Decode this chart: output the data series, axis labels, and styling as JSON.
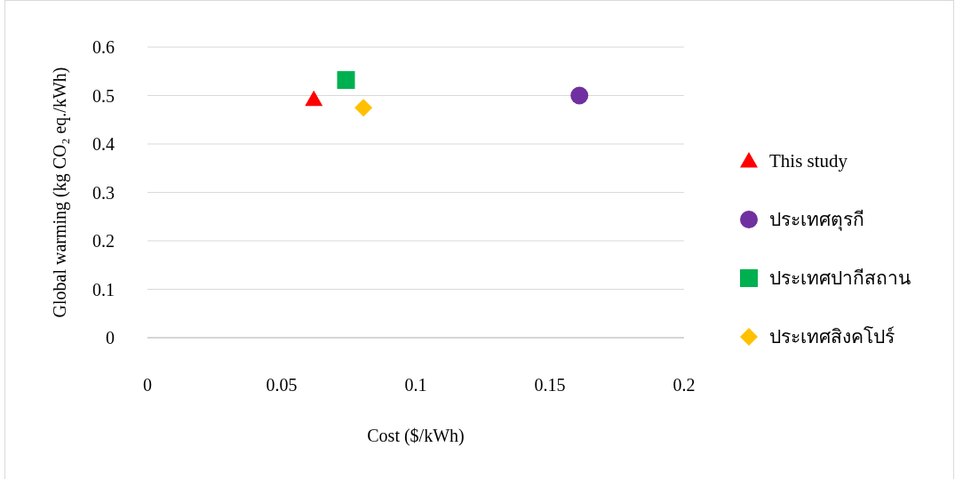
{
  "chart_data": {
    "type": "scatter",
    "xlabel": "Cost ($/kWh)",
    "ylabel": "Global warming (kg CO₂ eq./kWh)",
    "xlim": [
      0,
      0.2
    ],
    "xticks": [
      0,
      0.05,
      0.1,
      0.15,
      0.2
    ],
    "ylim": [
      0,
      0.6
    ],
    "yticks": [
      0,
      0.1,
      0.2,
      0.3,
      0.4,
      0.5,
      0.6
    ],
    "grid": "y",
    "legend": "right",
    "series": [
      {
        "name": "This study",
        "color": "#ff0000",
        "marker": "triangle",
        "x": [
          0.062
        ],
        "values": [
          0.492
        ]
      },
      {
        "name": "ประเทศตุรกี",
        "color": "#7030a0",
        "marker": "circle",
        "x": [
          0.161
        ],
        "values": [
          0.5
        ]
      },
      {
        "name": "ประเทศปากีสถาน",
        "color": "#00b050",
        "marker": "square",
        "x": [
          0.074
        ],
        "values": [
          0.532
        ]
      },
      {
        "name": "ประเทศสิงคโปร์",
        "color": "#ffc000",
        "marker": "diamond",
        "x": [
          0.0805
        ],
        "values": [
          0.475
        ]
      }
    ]
  }
}
